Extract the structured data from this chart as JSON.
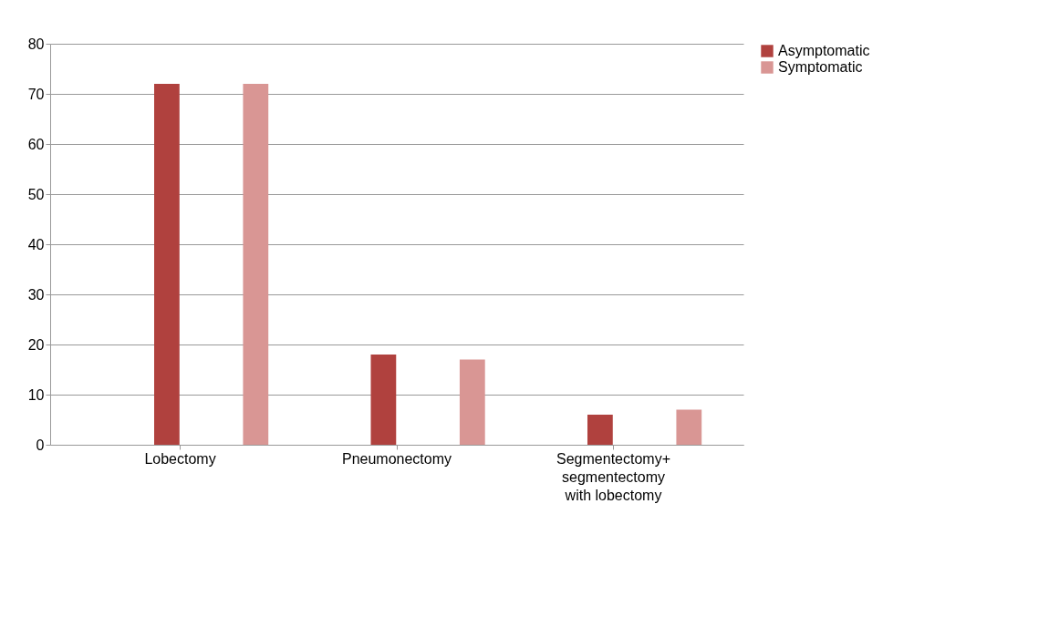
{
  "chart_data": {
    "type": "bar",
    "categories": [
      "Lobectomy",
      "Pneumonectomy",
      "Segmentectomy+ segmentectomy with lobectomy"
    ],
    "series": [
      {
        "name": "Asymptomatic",
        "color": "#b0413e",
        "values": [
          72,
          18,
          6
        ]
      },
      {
        "name": "Symptomatic",
        "color": "#d99694",
        "values": [
          72,
          17,
          7
        ]
      }
    ],
    "ylim": [
      0,
      80
    ],
    "yticks": [
      0,
      10,
      20,
      30,
      40,
      50,
      60,
      70,
      80
    ],
    "grid": "y",
    "legend": "right"
  }
}
